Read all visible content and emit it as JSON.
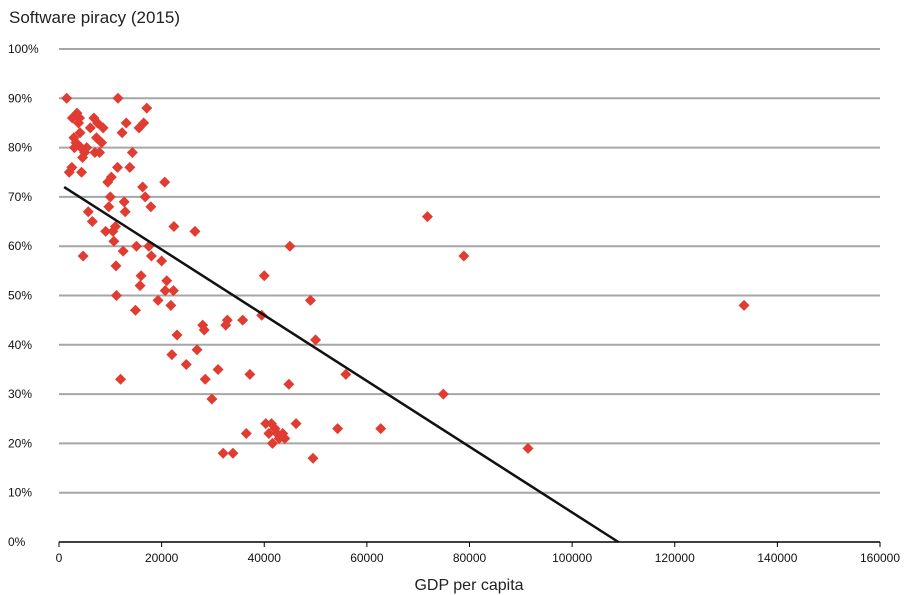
{
  "chart_data": {
    "type": "scatter",
    "title": "Software piracy (2015)",
    "xlabel": "GDP per capita",
    "ylabel": "",
    "xlim": [
      0,
      160000
    ],
    "ylim": [
      0,
      100
    ],
    "x_ticks": [
      "0",
      "20000",
      "40000",
      "60000",
      "80000",
      "100000",
      "120000",
      "140000",
      "160000"
    ],
    "y_ticks": [
      "0%",
      "10%",
      "20%",
      "30%",
      "40%",
      "50%",
      "60%",
      "70%",
      "80%",
      "90%",
      "100%"
    ],
    "grid": "horizontal",
    "marker": "diamond",
    "colors": {
      "points": "#e03c31",
      "trendline": "#111111",
      "grid": "#a6a6a6"
    },
    "points": [
      [
        1500,
        90
      ],
      [
        2000,
        75
      ],
      [
        2500,
        76
      ],
      [
        2600,
        86
      ],
      [
        2900,
        82
      ],
      [
        3000,
        80
      ],
      [
        3300,
        81
      ],
      [
        3500,
        87
      ],
      [
        3800,
        85
      ],
      [
        4000,
        86
      ],
      [
        4100,
        83
      ],
      [
        4300,
        80
      ],
      [
        4400,
        75
      ],
      [
        4600,
        78
      ],
      [
        4700,
        58
      ],
      [
        5000,
        79
      ],
      [
        5400,
        80
      ],
      [
        5700,
        67
      ],
      [
        6100,
        84
      ],
      [
        6500,
        65
      ],
      [
        6800,
        86
      ],
      [
        7000,
        79
      ],
      [
        7300,
        82
      ],
      [
        7500,
        85
      ],
      [
        7900,
        79
      ],
      [
        8300,
        81
      ],
      [
        8600,
        84
      ],
      [
        9100,
        63
      ],
      [
        9500,
        73
      ],
      [
        9700,
        68
      ],
      [
        10000,
        70
      ],
      [
        10200,
        74
      ],
      [
        10500,
        63
      ],
      [
        10700,
        61
      ],
      [
        11000,
        64
      ],
      [
        11100,
        56
      ],
      [
        11200,
        50
      ],
      [
        11400,
        76
      ],
      [
        11500,
        90
      ],
      [
        12000,
        33
      ],
      [
        12300,
        83
      ],
      [
        12500,
        59
      ],
      [
        12700,
        69
      ],
      [
        12900,
        67
      ],
      [
        13100,
        85
      ],
      [
        13800,
        76
      ],
      [
        14300,
        79
      ],
      [
        14900,
        47
      ],
      [
        15100,
        60
      ],
      [
        15600,
        84
      ],
      [
        15800,
        52
      ],
      [
        16000,
        54
      ],
      [
        16300,
        72
      ],
      [
        16500,
        85
      ],
      [
        16800,
        70
      ],
      [
        17100,
        88
      ],
      [
        17500,
        60
      ],
      [
        17900,
        68
      ],
      [
        18000,
        58
      ],
      [
        19300,
        49
      ],
      [
        20000,
        57
      ],
      [
        20600,
        73
      ],
      [
        20700,
        51
      ],
      [
        21000,
        53
      ],
      [
        21800,
        48
      ],
      [
        22000,
        38
      ],
      [
        22300,
        51
      ],
      [
        22400,
        64
      ],
      [
        23000,
        42
      ],
      [
        24800,
        36
      ],
      [
        26500,
        63
      ],
      [
        26900,
        39
      ],
      [
        28000,
        44
      ],
      [
        28300,
        43
      ],
      [
        28500,
        33
      ],
      [
        29800,
        29
      ],
      [
        31000,
        35
      ],
      [
        32000,
        18
      ],
      [
        32500,
        44
      ],
      [
        32800,
        45
      ],
      [
        33900,
        18
      ],
      [
        35800,
        45
      ],
      [
        36500,
        22
      ],
      [
        37200,
        34
      ],
      [
        39500,
        46
      ],
      [
        40000,
        54
      ],
      [
        40300,
        24
      ],
      [
        40900,
        22
      ],
      [
        41400,
        24
      ],
      [
        41600,
        20
      ],
      [
        42100,
        23
      ],
      [
        42500,
        22
      ],
      [
        42900,
        21
      ],
      [
        43600,
        22
      ],
      [
        44000,
        21
      ],
      [
        44800,
        32
      ],
      [
        45000,
        60
      ],
      [
        46200,
        24
      ],
      [
        49000,
        49
      ],
      [
        49500,
        17
      ],
      [
        50000,
        41
      ],
      [
        54300,
        23
      ],
      [
        55900,
        34
      ],
      [
        62700,
        23
      ],
      [
        71800,
        66
      ],
      [
        74900,
        30
      ],
      [
        78900,
        58
      ],
      [
        91400,
        19
      ],
      [
        133500,
        48
      ]
    ],
    "trendline": {
      "x": [
        1000,
        109000
      ],
      "y": [
        72,
        0
      ]
    }
  }
}
